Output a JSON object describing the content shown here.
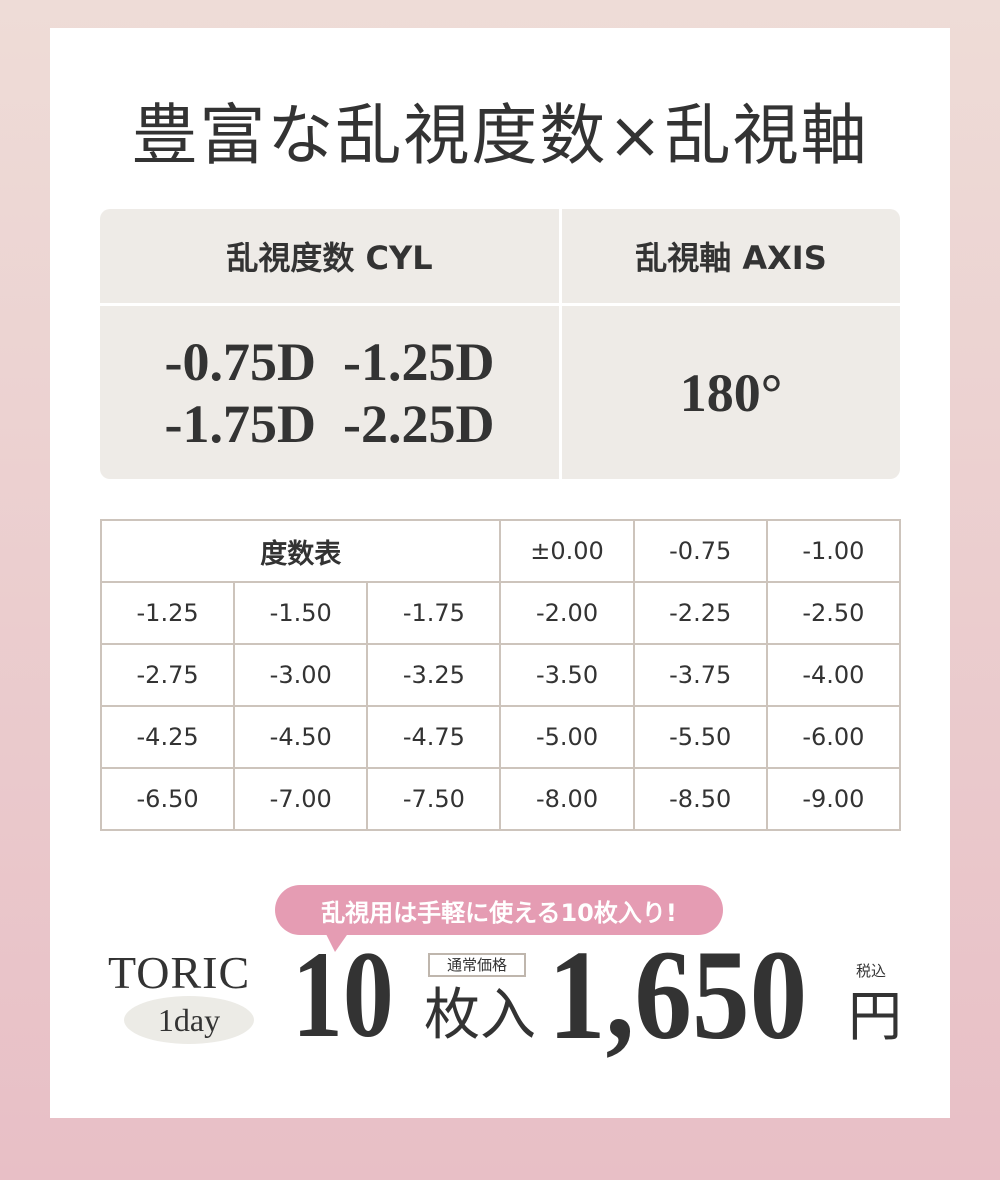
{
  "title": "豊富な乱視度数×乱視軸",
  "spec": {
    "cyl_label": "乱視度数 CYL",
    "axis_label": "乱視軸 AXIS",
    "cyl_values": [
      "-0.75D  -1.25D",
      "-1.75D  -2.25D"
    ],
    "axis_value": "180°"
  },
  "power_table": {
    "header": "度数表",
    "header_values": [
      "±0.00",
      "-0.75",
      "-1.00"
    ],
    "rows": [
      [
        "-1.25",
        "-1.50",
        "-1.75",
        "-2.00",
        "-2.25",
        "-2.50"
      ],
      [
        "-2.75",
        "-3.00",
        "-3.25",
        "-3.50",
        "-3.75",
        "-4.00"
      ],
      [
        "-4.25",
        "-4.50",
        "-4.75",
        "-5.00",
        "-5.50",
        "-6.00"
      ],
      [
        "-6.50",
        "-7.00",
        "-7.50",
        "-8.00",
        "-8.50",
        "-9.00"
      ]
    ]
  },
  "promo": {
    "bubble": "乱視用は手軽に使える10枚入り!",
    "brand": "TORIC",
    "type": "1day",
    "count": "10",
    "count_unit": "枚入",
    "regular_label": "通常価格",
    "price": "1,650",
    "tax_label": "税込",
    "currency": "円"
  },
  "colors": {
    "accent_pink": "#e59cb3",
    "panel": "#eeebe7",
    "border": "#cdc4bc"
  }
}
